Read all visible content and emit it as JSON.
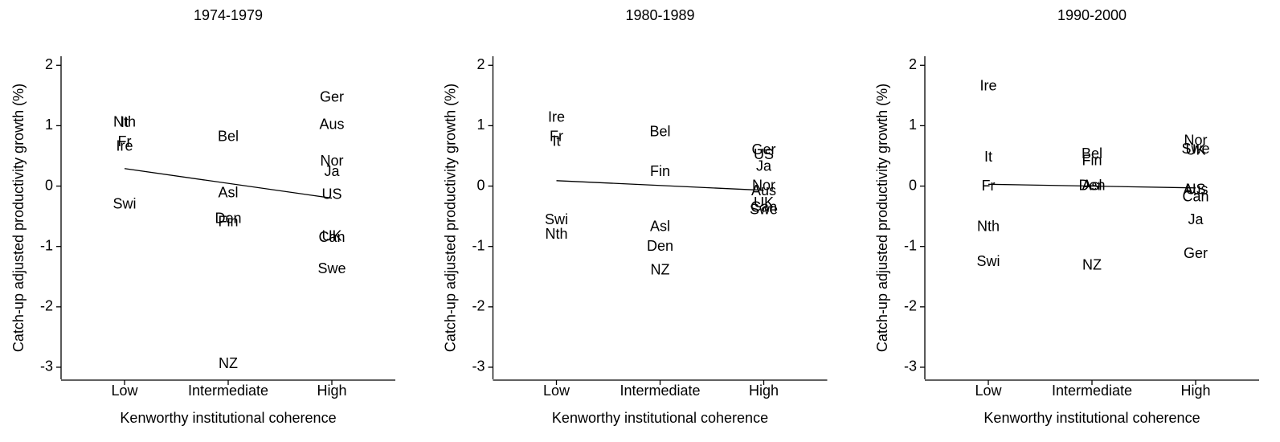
{
  "chart_data": [
    {
      "type": "scatter",
      "title": "1974-1979",
      "xlabel": "Kenworthy institutional coherence",
      "ylabel": "Catch-up adjusted productivity growth (%)",
      "categories": [
        "Low",
        "Intermediate",
        "High"
      ],
      "ylim": [
        -3.2,
        2.15
      ],
      "yticks": [
        -3,
        -2,
        -1,
        0,
        1,
        2
      ],
      "fit": [
        0.29,
        -0.2
      ],
      "points": [
        {
          "label": "Nth",
          "category": "Low",
          "value": 1.05
        },
        {
          "label": "It",
          "category": "Low",
          "value": 1.04
        },
        {
          "label": "Fr",
          "category": "Low",
          "value": 0.72
        },
        {
          "label": "Ire",
          "category": "Low",
          "value": 0.65
        },
        {
          "label": "Swi",
          "category": "Low",
          "value": -0.31
        },
        {
          "label": "Bel",
          "category": "Intermediate",
          "value": 0.81
        },
        {
          "label": "Asl",
          "category": "Intermediate",
          "value": -0.12
        },
        {
          "label": "Den",
          "category": "Intermediate",
          "value": -0.55
        },
        {
          "label": "Fin",
          "category": "Intermediate",
          "value": -0.6
        },
        {
          "label": "NZ",
          "category": "Intermediate",
          "value": -2.95
        },
        {
          "label": "Ger",
          "category": "High",
          "value": 1.46
        },
        {
          "label": "Aus",
          "category": "High",
          "value": 1.01
        },
        {
          "label": "Nor",
          "category": "High",
          "value": 0.4
        },
        {
          "label": "Ja",
          "category": "High",
          "value": 0.23
        },
        {
          "label": "US",
          "category": "High",
          "value": -0.15
        },
        {
          "label": "UK",
          "category": "High",
          "value": -0.84
        },
        {
          "label": "Can",
          "category": "High",
          "value": -0.86
        },
        {
          "label": "Swe",
          "category": "High",
          "value": -1.38
        }
      ]
    },
    {
      "type": "scatter",
      "title": "1980-1989",
      "xlabel": "Kenworthy institutional coherence",
      "ylabel": "Catch-up adjusted productivity growth (%)",
      "categories": [
        "Low",
        "Intermediate",
        "High"
      ],
      "ylim": [
        -3.2,
        2.15
      ],
      "yticks": [
        -3,
        -2,
        -1,
        0,
        1,
        2
      ],
      "fit": [
        0.09,
        -0.07
      ],
      "points": [
        {
          "label": "Ire",
          "category": "Low",
          "value": 1.13
        },
        {
          "label": "Fr",
          "category": "Low",
          "value": 0.81
        },
        {
          "label": "It",
          "category": "Low",
          "value": 0.73
        },
        {
          "label": "Swi",
          "category": "Low",
          "value": -0.57
        },
        {
          "label": "Nth",
          "category": "Low",
          "value": -0.81
        },
        {
          "label": "Bel",
          "category": "Intermediate",
          "value": 0.89
        },
        {
          "label": "Fin",
          "category": "Intermediate",
          "value": 0.23
        },
        {
          "label": "Asl",
          "category": "Intermediate",
          "value": -0.68
        },
        {
          "label": "Den",
          "category": "Intermediate",
          "value": -1.01
        },
        {
          "label": "NZ",
          "category": "Intermediate",
          "value": -1.4
        },
        {
          "label": "Ger",
          "category": "High",
          "value": 0.59
        },
        {
          "label": "US",
          "category": "High",
          "value": 0.51
        },
        {
          "label": "Ja",
          "category": "High",
          "value": 0.32
        },
        {
          "label": "Nor",
          "category": "High",
          "value": 0
        },
        {
          "label": "Aus",
          "category": "High",
          "value": -0.09
        },
        {
          "label": "UK",
          "category": "High",
          "value": -0.29
        },
        {
          "label": "Can",
          "category": "High",
          "value": -0.36
        },
        {
          "label": "Swe",
          "category": "High",
          "value": -0.4
        }
      ]
    },
    {
      "type": "scatter",
      "title": "1990-2000",
      "xlabel": "Kenworthy institutional coherence",
      "ylabel": "Catch-up adjusted productivity growth (%)",
      "categories": [
        "Low",
        "Intermediate",
        "High"
      ],
      "ylim": [
        -3.2,
        2.15
      ],
      "yticks": [
        -3,
        -2,
        -1,
        0,
        1,
        2
      ],
      "fit": [
        0.03,
        -0.03
      ],
      "points": [
        {
          "label": "Ire",
          "category": "Low",
          "value": 1.65
        },
        {
          "label": "It",
          "category": "Low",
          "value": 0.47
        },
        {
          "label": "Fr",
          "category": "Low",
          "value": -0.01
        },
        {
          "label": "Nth",
          "category": "Low",
          "value": -0.68
        },
        {
          "label": "Swi",
          "category": "Low",
          "value": -1.26
        },
        {
          "label": "Bel",
          "category": "Intermediate",
          "value": 0.52
        },
        {
          "label": "Fin",
          "category": "Intermediate",
          "value": 0.41
        },
        {
          "label": "Den",
          "category": "Intermediate",
          "value": 0
        },
        {
          "label": "Asl",
          "category": "Intermediate",
          "value": 0
        },
        {
          "label": "NZ",
          "category": "Intermediate",
          "value": -1.32
        },
        {
          "label": "Nor",
          "category": "High",
          "value": 0.74
        },
        {
          "label": "Swe",
          "category": "High",
          "value": 0.6
        },
        {
          "label": "UK",
          "category": "High",
          "value": 0.58
        },
        {
          "label": "Aus",
          "category": "High",
          "value": -0.07
        },
        {
          "label": "US",
          "category": "High",
          "value": -0.07
        },
        {
          "label": "Can",
          "category": "High",
          "value": -0.19
        },
        {
          "label": "Ja",
          "category": "High",
          "value": -0.57
        },
        {
          "label": "Ger",
          "category": "High",
          "value": -1.13
        }
      ]
    }
  ]
}
